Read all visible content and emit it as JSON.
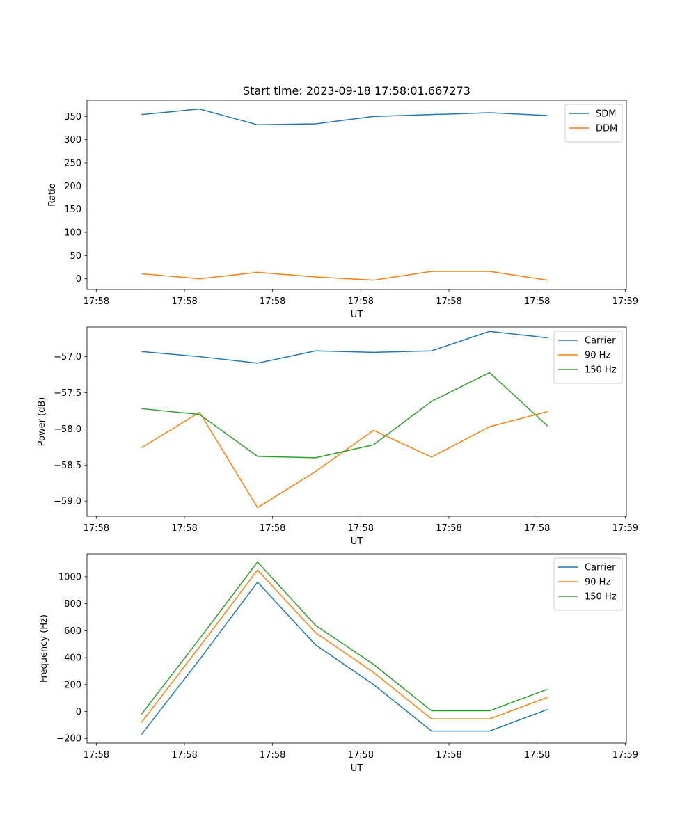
{
  "figure_title": "Start time: 2023-09-18 17:58:01.667273",
  "colors": {
    "blue": "#1f77b4",
    "orange": "#ff7f0e",
    "green": "#2ca02c"
  },
  "chart_data": [
    {
      "type": "line",
      "title": "Start time: 2023-09-18 17:58:01.667273",
      "xlabel": "UT",
      "ylabel": "Ratio",
      "x": [
        1,
        2,
        3,
        4,
        5,
        6,
        7,
        8
      ],
      "xlim": [
        0.06,
        9.36
      ],
      "x_ticks": [
        0.22,
        1.74,
        3.26,
        4.78,
        6.3,
        7.82,
        9.34
      ],
      "x_tick_labels": [
        "17:58",
        "17:58",
        "17:58",
        "17:58",
        "17:58",
        "17:58",
        "17:59"
      ],
      "ylim": [
        -23,
        385
      ],
      "y_ticks": [
        0,
        50,
        100,
        150,
        200,
        250,
        300,
        350
      ],
      "y_tick_labels": [
        "0",
        "50",
        "100",
        "150",
        "200",
        "250",
        "300",
        "350"
      ],
      "legend": "top-right",
      "series": [
        {
          "name": "SDM",
          "color": "#1f77b4",
          "values": [
            354,
            366,
            332,
            334,
            350,
            354,
            358,
            352
          ]
        },
        {
          "name": "DDM",
          "color": "#ff7f0e",
          "values": [
            11,
            0,
            14,
            4,
            -3,
            16,
            16,
            -3
          ]
        }
      ]
    },
    {
      "type": "line",
      "title": "",
      "xlabel": "UT",
      "ylabel": "Power (dB)",
      "x": [
        1,
        2,
        3,
        4,
        5,
        6,
        7,
        8
      ],
      "xlim": [
        0.06,
        9.36
      ],
      "x_ticks": [
        0.22,
        1.74,
        3.26,
        4.78,
        6.3,
        7.82,
        9.34
      ],
      "x_tick_labels": [
        "17:58",
        "17:58",
        "17:58",
        "17:58",
        "17:58",
        "17:58",
        "17:59"
      ],
      "ylim": [
        -59.21,
        -56.59
      ],
      "y_ticks": [
        -59.0,
        -58.5,
        -58.0,
        -57.5,
        -57.0
      ],
      "y_tick_labels": [
        "−59.0",
        "−58.5",
        "−58.0",
        "−57.5",
        "−57.0"
      ],
      "legend": "top-right",
      "series": [
        {
          "name": "Carrier",
          "color": "#1f77b4",
          "values": [
            -56.93,
            -57.0,
            -57.09,
            -56.92,
            -56.94,
            -56.92,
            -56.65,
            -56.74
          ]
        },
        {
          "name": "90 Hz",
          "color": "#ff7f0e",
          "values": [
            -58.26,
            -57.77,
            -59.09,
            -58.59,
            -58.02,
            -58.39,
            -57.97,
            -57.76
          ]
        },
        {
          "name": "150 Hz",
          "color": "#2ca02c",
          "values": [
            -57.72,
            -57.8,
            -58.38,
            -58.4,
            -58.22,
            -57.62,
            -57.22,
            -57.96
          ]
        }
      ]
    },
    {
      "type": "line",
      "title": "",
      "xlabel": "UT",
      "ylabel": "Frequency (Hz)",
      "x": [
        1,
        2,
        3,
        4,
        5,
        6,
        7,
        8
      ],
      "xlim": [
        0.06,
        9.36
      ],
      "x_ticks": [
        0.22,
        1.74,
        3.26,
        4.78,
        6.3,
        7.82,
        9.34
      ],
      "x_tick_labels": [
        "17:58",
        "17:58",
        "17:58",
        "17:58",
        "17:58",
        "17:58",
        "17:59"
      ],
      "ylim": [
        -235,
        1170
      ],
      "y_ticks": [
        -200,
        0,
        200,
        400,
        600,
        800,
        1000
      ],
      "y_tick_labels": [
        "−200",
        "0",
        "200",
        "400",
        "600",
        "800",
        "1000"
      ],
      "legend": "top-right",
      "series": [
        {
          "name": "Carrier",
          "color": "#1f77b4",
          "values": [
            -170,
            385,
            960,
            495,
            200,
            -145,
            -145,
            15
          ]
        },
        {
          "name": "90 Hz",
          "color": "#ff7f0e",
          "values": [
            -80,
            480,
            1050,
            585,
            290,
            -55,
            -55,
            105
          ]
        },
        {
          "name": "150 Hz",
          "color": "#2ca02c",
          "values": [
            -20,
            540,
            1110,
            640,
            350,
            5,
            5,
            165
          ]
        }
      ]
    }
  ]
}
